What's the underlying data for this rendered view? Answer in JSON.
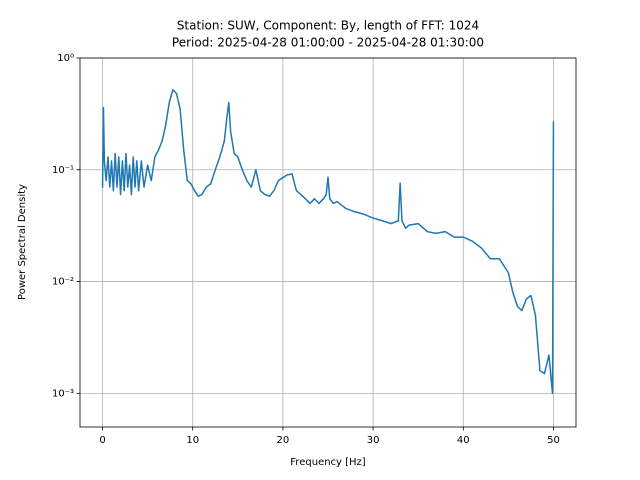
{
  "chart_data": {
    "type": "line",
    "title": [
      "Station: SUW, Component: By, length of FFT: 1024",
      "Period: 2025-04-28 01:00:00 - 2025-04-28 01:30:00"
    ],
    "xlabel": "Frequency [Hz]",
    "ylabel": "Power Spectral Density",
    "xlim": [
      -2.5,
      52.5
    ],
    "xticks": [
      0,
      10,
      20,
      30,
      40,
      50
    ],
    "ylim": [
      0.0005,
      1
    ],
    "yscale": "log",
    "yticks": [
      {
        "value": 0.001,
        "label": "10⁻³"
      },
      {
        "value": 0.01,
        "label": "10⁻²"
      },
      {
        "value": 0.1,
        "label": "10⁻¹"
      },
      {
        "value": 1,
        "label": "10⁰"
      }
    ],
    "grid": true,
    "x": [
      0,
      0.1,
      0.2,
      0.4,
      0.6,
      0.8,
      1.0,
      1.2,
      1.4,
      1.6,
      1.8,
      2.0,
      2.2,
      2.4,
      2.6,
      2.8,
      3.0,
      3.2,
      3.4,
      3.6,
      3.8,
      4.0,
      4.3,
      4.6,
      5.0,
      5.4,
      5.8,
      6.2,
      6.6,
      7.0,
      7.4,
      7.8,
      8.2,
      8.6,
      9.0,
      9.4,
      9.8,
      10.2,
      10.6,
      11.0,
      11.5,
      12.0,
      12.5,
      13.0,
      13.5,
      13.8,
      14.0,
      14.2,
      14.6,
      15.0,
      15.5,
      16.0,
      16.5,
      17.0,
      17.5,
      18.0,
      18.5,
      19.0,
      19.5,
      20.0,
      20.5,
      21.0,
      21.5,
      22.0,
      22.5,
      23.0,
      23.5,
      24.0,
      24.5,
      24.8,
      25.0,
      25.2,
      25.6,
      26,
      27,
      28,
      29,
      30,
      31,
      32,
      32.8,
      33.0,
      33.2,
      33.6,
      34,
      35,
      36,
      37,
      38,
      39,
      40,
      41,
      42,
      43,
      44,
      45,
      45.5,
      46,
      46.5,
      47,
      47.5,
      48,
      48.5,
      49,
      49.5,
      49.8,
      49.9,
      50.0
    ],
    "series": [
      {
        "color": "#1f77b4",
        "values": [
          0.069,
          0.36,
          0.12,
          0.08,
          0.13,
          0.07,
          0.12,
          0.065,
          0.14,
          0.07,
          0.13,
          0.06,
          0.12,
          0.065,
          0.14,
          0.07,
          0.11,
          0.06,
          0.13,
          0.07,
          0.12,
          0.065,
          0.12,
          0.07,
          0.11,
          0.08,
          0.13,
          0.15,
          0.18,
          0.25,
          0.4,
          0.52,
          0.48,
          0.35,
          0.15,
          0.08,
          0.075,
          0.065,
          0.058,
          0.06,
          0.07,
          0.075,
          0.1,
          0.13,
          0.18,
          0.3,
          0.4,
          0.22,
          0.14,
          0.13,
          0.1,
          0.08,
          0.07,
          0.1,
          0.065,
          0.06,
          0.058,
          0.065,
          0.08,
          0.085,
          0.09,
          0.092,
          0.065,
          0.06,
          0.055,
          0.05,
          0.055,
          0.05,
          0.055,
          0.06,
          0.086,
          0.055,
          0.05,
          0.052,
          0.045,
          0.042,
          0.04,
          0.037,
          0.035,
          0.033,
          0.035,
          0.076,
          0.035,
          0.03,
          0.032,
          0.033,
          0.028,
          0.027,
          0.028,
          0.025,
          0.025,
          0.023,
          0.02,
          0.016,
          0.016,
          0.012,
          0.008,
          0.006,
          0.0055,
          0.007,
          0.0075,
          0.005,
          0.0016,
          0.0015,
          0.0022,
          0.0012,
          0.001,
          0.27
        ]
      }
    ]
  }
}
